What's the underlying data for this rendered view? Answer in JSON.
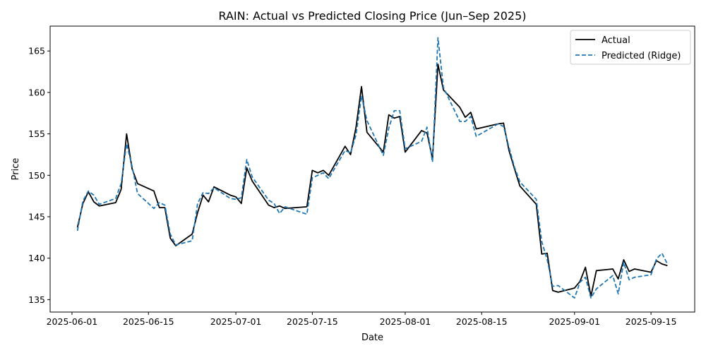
{
  "chart_data": {
    "type": "line",
    "title": "RAIN: Actual vs Predicted Closing Price (Jun–Sep 2025)",
    "xlabel": "Date",
    "ylabel": "Price",
    "xlim": [
      "2025-05-28",
      "2025-09-23"
    ],
    "ylim": [
      133.5,
      168
    ],
    "x_ticks": [
      "2025-06-01",
      "2025-06-15",
      "2025-07-01",
      "2025-07-15",
      "2025-08-01",
      "2025-08-15",
      "2025-09-01",
      "2025-09-15"
    ],
    "y_ticks": [
      135,
      140,
      145,
      150,
      155,
      160,
      165
    ],
    "grid": false,
    "legend_position": "top-right",
    "colors": {
      "actual": "#000000",
      "predicted": "#1f77b4"
    },
    "series": [
      {
        "name": "Actual",
        "style": "solid",
        "points": [
          [
            "2025-06-02",
            143.7
          ],
          [
            "2025-06-03",
            146.6
          ],
          [
            "2025-06-04",
            148.0
          ],
          [
            "2025-06-05",
            146.8
          ],
          [
            "2025-06-06",
            146.3
          ],
          [
            "2025-06-09",
            146.7
          ],
          [
            "2025-06-10",
            148.3
          ],
          [
            "2025-06-11",
            155.0
          ],
          [
            "2025-06-12",
            150.8
          ],
          [
            "2025-06-13",
            149.0
          ],
          [
            "2025-06-16",
            148.1
          ],
          [
            "2025-06-17",
            146.1
          ],
          [
            "2025-06-18",
            146.1
          ],
          [
            "2025-06-19",
            142.4
          ],
          [
            "2025-06-20",
            141.5
          ],
          [
            "2025-06-23",
            142.9
          ],
          [
            "2025-06-24",
            145.5
          ],
          [
            "2025-06-25",
            147.6
          ],
          [
            "2025-06-26",
            146.8
          ],
          [
            "2025-06-27",
            148.6
          ],
          [
            "2025-06-30",
            147.6
          ],
          [
            "2025-07-01",
            147.4
          ],
          [
            "2025-07-02",
            146.6
          ],
          [
            "2025-07-03",
            150.9
          ],
          [
            "2025-07-04",
            149.3
          ],
          [
            "2025-07-07",
            146.4
          ],
          [
            "2025-07-08",
            146.1
          ],
          [
            "2025-07-09",
            146.3
          ],
          [
            "2025-07-10",
            146.0
          ],
          [
            "2025-07-14",
            146.2
          ],
          [
            "2025-07-15",
            150.6
          ],
          [
            "2025-07-16",
            150.3
          ],
          [
            "2025-07-17",
            150.6
          ],
          [
            "2025-07-18",
            150.0
          ],
          [
            "2025-07-21",
            153.5
          ],
          [
            "2025-07-22",
            152.5
          ],
          [
            "2025-07-23",
            155.8
          ],
          [
            "2025-07-24",
            160.7
          ],
          [
            "2025-07-25",
            155.2
          ],
          [
            "2025-07-28",
            152.8
          ],
          [
            "2025-07-29",
            157.3
          ],
          [
            "2025-07-30",
            156.9
          ],
          [
            "2025-07-31",
            157.1
          ],
          [
            "2025-08-01",
            152.8
          ],
          [
            "2025-08-04",
            155.4
          ],
          [
            "2025-08-05",
            155.1
          ],
          [
            "2025-08-06",
            152.0
          ],
          [
            "2025-08-07",
            163.4
          ],
          [
            "2025-08-08",
            160.3
          ],
          [
            "2025-08-11",
            158.2
          ],
          [
            "2025-08-12",
            157.0
          ],
          [
            "2025-08-13",
            157.6
          ],
          [
            "2025-08-14",
            155.6
          ],
          [
            "2025-08-18",
            156.2
          ],
          [
            "2025-08-19",
            156.3
          ],
          [
            "2025-08-20",
            153.0
          ],
          [
            "2025-08-21",
            150.8
          ],
          [
            "2025-08-22",
            148.7
          ],
          [
            "2025-08-25",
            146.5
          ],
          [
            "2025-08-26",
            140.5
          ],
          [
            "2025-08-27",
            140.6
          ],
          [
            "2025-08-28",
            136.1
          ],
          [
            "2025-08-29",
            135.9
          ],
          [
            "2025-09-01",
            136.4
          ],
          [
            "2025-09-02",
            137.2
          ],
          [
            "2025-09-03",
            138.9
          ],
          [
            "2025-09-04",
            135.4
          ],
          [
            "2025-09-05",
            138.5
          ],
          [
            "2025-09-08",
            138.7
          ],
          [
            "2025-09-09",
            137.5
          ],
          [
            "2025-09-10",
            139.8
          ],
          [
            "2025-09-11",
            138.4
          ],
          [
            "2025-09-12",
            138.7
          ],
          [
            "2025-09-15",
            138.3
          ],
          [
            "2025-09-16",
            139.7
          ],
          [
            "2025-09-17",
            139.3
          ],
          [
            "2025-09-18",
            139.1
          ]
        ]
      },
      {
        "name": "Predicted (Ridge)",
        "style": "dashed",
        "points": [
          [
            "2025-06-02",
            143.3
          ],
          [
            "2025-06-03",
            146.9
          ],
          [
            "2025-06-04",
            148.1
          ],
          [
            "2025-06-05",
            147.6
          ],
          [
            "2025-06-06",
            146.5
          ],
          [
            "2025-06-09",
            147.2
          ],
          [
            "2025-06-10",
            149.0
          ],
          [
            "2025-06-11",
            153.8
          ],
          [
            "2025-06-12",
            151.1
          ],
          [
            "2025-06-13",
            147.8
          ],
          [
            "2025-06-16",
            146.0
          ],
          [
            "2025-06-17",
            146.7
          ],
          [
            "2025-06-18",
            146.4
          ],
          [
            "2025-06-19",
            142.9
          ],
          [
            "2025-06-20",
            141.6
          ],
          [
            "2025-06-23",
            142.1
          ],
          [
            "2025-06-24",
            146.6
          ],
          [
            "2025-06-25",
            147.9
          ],
          [
            "2025-06-26",
            147.8
          ],
          [
            "2025-06-27",
            148.5
          ],
          [
            "2025-06-30",
            147.2
          ],
          [
            "2025-07-01",
            147.1
          ],
          [
            "2025-07-02",
            147.3
          ],
          [
            "2025-07-03",
            151.9
          ],
          [
            "2025-07-04",
            149.8
          ],
          [
            "2025-07-07",
            147.0
          ],
          [
            "2025-07-08",
            146.6
          ],
          [
            "2025-07-09",
            145.4
          ],
          [
            "2025-07-10",
            146.2
          ],
          [
            "2025-07-14",
            145.3
          ],
          [
            "2025-07-15",
            149.7
          ],
          [
            "2025-07-16",
            150.0
          ],
          [
            "2025-07-17",
            150.3
          ],
          [
            "2025-07-18",
            149.6
          ],
          [
            "2025-07-21",
            153.0
          ],
          [
            "2025-07-22",
            152.7
          ],
          [
            "2025-07-23",
            154.9
          ],
          [
            "2025-07-24",
            159.6
          ],
          [
            "2025-07-25",
            156.6
          ],
          [
            "2025-07-28",
            152.4
          ],
          [
            "2025-07-29",
            155.7
          ],
          [
            "2025-07-30",
            157.8
          ],
          [
            "2025-07-31",
            157.8
          ],
          [
            "2025-08-01",
            153.2
          ],
          [
            "2025-08-04",
            154.1
          ],
          [
            "2025-08-05",
            155.8
          ],
          [
            "2025-08-06",
            151.6
          ],
          [
            "2025-08-07",
            166.6
          ],
          [
            "2025-08-08",
            160.6
          ],
          [
            "2025-08-11",
            156.5
          ],
          [
            "2025-08-12",
            156.5
          ],
          [
            "2025-08-13",
            157.1
          ],
          [
            "2025-08-14",
            154.7
          ],
          [
            "2025-08-18",
            156.2
          ],
          [
            "2025-08-19",
            155.9
          ],
          [
            "2025-08-20",
            153.4
          ],
          [
            "2025-08-21",
            151.0
          ],
          [
            "2025-08-22",
            149.2
          ],
          [
            "2025-08-25",
            147.1
          ],
          [
            "2025-08-26",
            142.0
          ],
          [
            "2025-08-27",
            139.8
          ],
          [
            "2025-08-28",
            136.6
          ],
          [
            "2025-08-29",
            136.7
          ],
          [
            "2025-09-01",
            135.2
          ],
          [
            "2025-09-02",
            137.1
          ],
          [
            "2025-09-03",
            137.7
          ],
          [
            "2025-09-04",
            135.2
          ],
          [
            "2025-09-05",
            136.3
          ],
          [
            "2025-09-08",
            137.9
          ],
          [
            "2025-09-09",
            135.7
          ],
          [
            "2025-09-10",
            139.5
          ],
          [
            "2025-09-11",
            137.4
          ],
          [
            "2025-09-12",
            137.7
          ],
          [
            "2025-09-15",
            138.0
          ],
          [
            "2025-09-16",
            139.9
          ],
          [
            "2025-09-17",
            140.6
          ],
          [
            "2025-09-18",
            139.3
          ]
        ]
      }
    ]
  }
}
